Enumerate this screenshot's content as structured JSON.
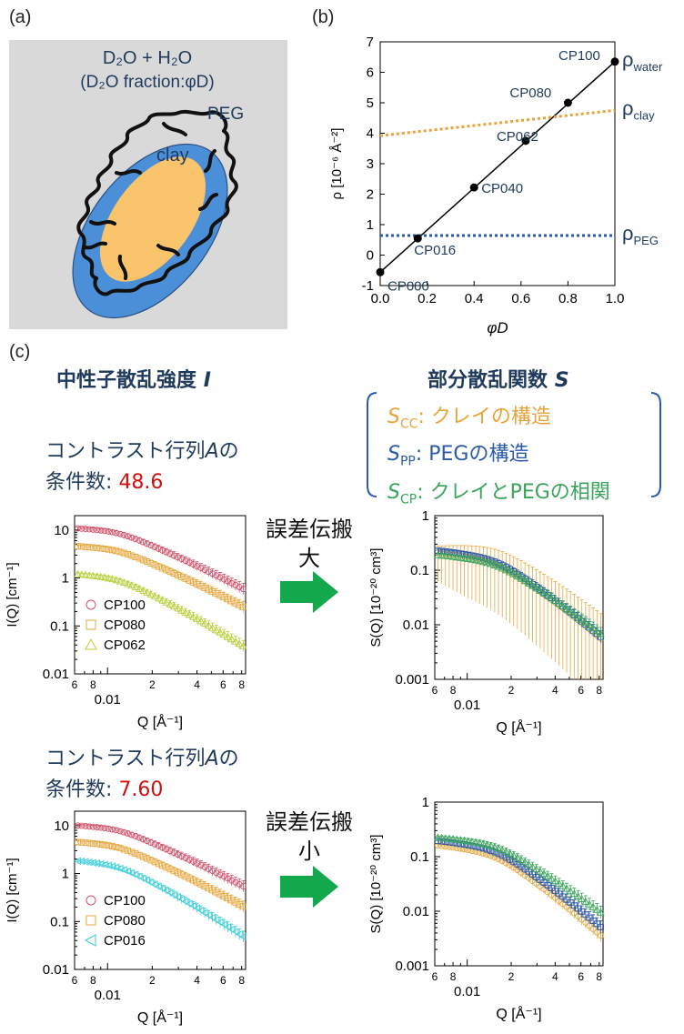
{
  "panel_a": {
    "label": "(a)",
    "solvent": "D₂O + H₂O",
    "fraction": "(D₂O  fraction:φD)",
    "peg": "PEG",
    "clay": "clay",
    "colors": {
      "background": "#d9d9d9",
      "peg": "#4b8fd8",
      "clay": "#f9c46b",
      "chains": "#111111"
    }
  },
  "panel_b": {
    "label": "(b)"
  },
  "panel_c": {
    "label": "(c)",
    "left_heading": "中性子散乱強度",
    "left_heading_symbol": "I",
    "right_heading": "部分散乱関数",
    "right_heading_symbol": "S",
    "legend_box": [
      {
        "sym": "S",
        "sub": "CC",
        "text": ": クレイの構造",
        "color": "#e8a33a"
      },
      {
        "sym": "S",
        "sub": "PP",
        "text": ": PEGの構造",
        "color": "#2a5aa8"
      },
      {
        "sym": "S",
        "sub": "CP",
        "text": ": クレイとPEGの相関",
        "color": "#3aa55a"
      }
    ],
    "top": {
      "cond_line1": "コントラスト行列",
      "cond_A": "A",
      "cond_no": "の",
      "cond_line2": "条件数",
      "cond_colon": ":",
      "cond_value": "48.6",
      "arrow_line1": "誤差伝搬",
      "arrow_line2": "大"
    },
    "bottom": {
      "cond_line1": "コントラスト行列",
      "cond_A": "A",
      "cond_no": "の",
      "cond_line2": "条件数",
      "cond_colon": ":",
      "cond_value": "7.60",
      "arrow_line1": "誤差伝搬",
      "arrow_line2": "小"
    },
    "arrow_color": "#12a84b"
  },
  "chart_data": [
    {
      "id": "b",
      "type": "line",
      "xlabel": "φD",
      "ylabel": "ρ [10⁻⁶ Å⁻²]",
      "xlim": [
        0.0,
        1.0
      ],
      "ylim": [
        -1,
        7
      ],
      "xticks": [
        "0.0",
        "0.2",
        "0.4",
        "0.6",
        "0.8",
        "1.0"
      ],
      "yticks": [
        "-1",
        "0",
        "1",
        "2",
        "3",
        "4",
        "5",
        "6",
        "7"
      ],
      "points": [
        {
          "name": "CP000",
          "x": 0.0,
          "y": -0.56
        },
        {
          "name": "CP016",
          "x": 0.16,
          "y": 0.55
        },
        {
          "name": "CP040",
          "x": 0.4,
          "y": 2.22
        },
        {
          "name": "CP062",
          "x": 0.62,
          "y": 3.75
        },
        {
          "name": "CP080",
          "x": 0.8,
          "y": 5.0
        },
        {
          "name": "CP100",
          "x": 1.0,
          "y": 6.35
        }
      ],
      "lines": [
        {
          "name": "ρwater",
          "sym": "ρ",
          "sub": "water",
          "x": [
            0,
            1
          ],
          "y": [
            -0.56,
            6.35
          ],
          "color": "#000000",
          "style": "solid"
        },
        {
          "name": "ρclay",
          "sym": "ρ",
          "sub": "clay",
          "x": [
            0,
            1
          ],
          "y": [
            3.92,
            4.75
          ],
          "color": "#e8a33a",
          "style": "dotted"
        },
        {
          "name": "ρPEG",
          "sym": "ρ",
          "sub": "PEG",
          "x": [
            0,
            1
          ],
          "y": [
            0.64,
            0.64
          ],
          "color": "#2a5aa8",
          "style": "dotted"
        }
      ]
    },
    {
      "id": "c-top-left",
      "type": "scatter",
      "log": true,
      "xlabel": "Q [Å⁻¹]",
      "ylabel": "I(Q) [cm⁻¹]",
      "xlim": [
        0.006,
        0.085
      ],
      "ylim": [
        0.01,
        20
      ],
      "xticks": [
        {
          "v": 0.006,
          "t": "6"
        },
        {
          "v": 0.008,
          "t": "8"
        },
        {
          "v": 0.02,
          "t": "2"
        },
        {
          "v": 0.04,
          "t": "4"
        },
        {
          "v": 0.06,
          "t": "6"
        },
        {
          "v": 0.08,
          "t": "8"
        }
      ],
      "xmajor": {
        "v": 0.01,
        "t": "0.01"
      },
      "yticks": [
        {
          "v": 10,
          "t": "10"
        },
        {
          "v": 1,
          "t": "1"
        },
        {
          "v": 0.1,
          "t": "0.1"
        },
        {
          "v": 0.01,
          "t": "0.01"
        }
      ],
      "series": [
        {
          "name": "CP100",
          "color": "#d0506a",
          "marker": "circle",
          "A": 13,
          "q0": 0.012,
          "slope": 1.6
        },
        {
          "name": "CP080",
          "color": "#e6a73e",
          "marker": "square",
          "A": 5.5,
          "q0": 0.012,
          "slope": 1.6
        },
        {
          "name": "CP062",
          "color": "#b8cf3a",
          "marker": "triangle-up",
          "A": 1.5,
          "q0": 0.012,
          "slope": 1.9
        }
      ]
    },
    {
      "id": "c-top-right",
      "type": "scatter",
      "log": true,
      "xlabel": "Q [Å⁻¹]",
      "ylabel": "S(Q) [10⁻²⁰ cm³]",
      "xlim": [
        0.006,
        0.085
      ],
      "ylim": [
        0.001,
        1
      ],
      "xticks": [
        {
          "v": 0.006,
          "t": "6"
        },
        {
          "v": 0.008,
          "t": "8"
        },
        {
          "v": 0.02,
          "t": "2"
        },
        {
          "v": 0.04,
          "t": "4"
        },
        {
          "v": 0.06,
          "t": "6"
        },
        {
          "v": 0.08,
          "t": "8"
        }
      ],
      "xmajor": {
        "v": 0.01,
        "t": "0.01"
      },
      "yticks": [
        {
          "v": 1,
          "t": "1"
        },
        {
          "v": 0.1,
          "t": "0.1"
        },
        {
          "v": 0.01,
          "t": "0.01"
        },
        {
          "v": 0.001,
          "t": "0.001"
        }
      ],
      "series": [
        {
          "name": "SCC",
          "color": "#e6a73e",
          "marker": "circle",
          "A": 0.25,
          "q0": 0.016,
          "slope": 2.3,
          "big_errors": true
        },
        {
          "name": "SPP",
          "color": "#2a5aa8",
          "marker": "square",
          "A": 0.27,
          "q0": 0.016,
          "slope": 2.3
        },
        {
          "name": "SCP",
          "color": "#3aa55a",
          "marker": "triangle-up",
          "A": 0.22,
          "q0": 0.016,
          "slope": 2.1
        }
      ]
    },
    {
      "id": "c-bottom-left",
      "type": "scatter",
      "log": true,
      "xlabel": "Q [Å⁻¹]",
      "ylabel": "I(Q) [cm⁻¹]",
      "xlim": [
        0.006,
        0.085
      ],
      "ylim": [
        0.01,
        20
      ],
      "xticks": [
        {
          "v": 0.006,
          "t": "6"
        },
        {
          "v": 0.008,
          "t": "8"
        },
        {
          "v": 0.02,
          "t": "2"
        },
        {
          "v": 0.04,
          "t": "4"
        },
        {
          "v": 0.06,
          "t": "6"
        },
        {
          "v": 0.08,
          "t": "8"
        }
      ],
      "xmajor": {
        "v": 0.01,
        "t": "0.01"
      },
      "yticks": [
        {
          "v": 10,
          "t": "10"
        },
        {
          "v": 1,
          "t": "1"
        },
        {
          "v": 0.1,
          "t": "0.1"
        },
        {
          "v": 0.01,
          "t": "0.01"
        }
      ],
      "series": [
        {
          "name": "CP100",
          "color": "#d0506a",
          "marker": "circle",
          "A": 12,
          "q0": 0.012,
          "slope": 1.6
        },
        {
          "name": "CP080",
          "color": "#e6a73e",
          "marker": "square",
          "A": 5.5,
          "q0": 0.012,
          "slope": 1.7
        },
        {
          "name": "CP016",
          "color": "#3ecfd8",
          "marker": "triangle-left",
          "A": 2.3,
          "q0": 0.012,
          "slope": 2.0
        }
      ]
    },
    {
      "id": "c-bottom-right",
      "type": "scatter",
      "log": true,
      "xlabel": "Q [Å⁻¹]",
      "ylabel": "S(Q) [10⁻²⁰ cm³]",
      "xlim": [
        0.006,
        0.085
      ],
      "ylim": [
        0.001,
        1
      ],
      "xticks": [
        {
          "v": 0.006,
          "t": "6"
        },
        {
          "v": 0.008,
          "t": "8"
        },
        {
          "v": 0.02,
          "t": "2"
        },
        {
          "v": 0.04,
          "t": "4"
        },
        {
          "v": 0.06,
          "t": "6"
        },
        {
          "v": 0.08,
          "t": "8"
        }
      ],
      "xmajor": {
        "v": 0.01,
        "t": "0.01"
      },
      "yticks": [
        {
          "v": 1,
          "t": "1"
        },
        {
          "v": 0.1,
          "t": "0.1"
        },
        {
          "v": 0.01,
          "t": "0.01"
        },
        {
          "v": 0.001,
          "t": "0.001"
        }
      ],
      "series": [
        {
          "name": "SCC",
          "color": "#e6a73e",
          "marker": "circle",
          "A": 0.19,
          "q0": 0.016,
          "slope": 2.4
        },
        {
          "name": "SPP",
          "color": "#2a5aa8",
          "marker": "square",
          "A": 0.23,
          "q0": 0.016,
          "slope": 2.3
        },
        {
          "name": "SCP",
          "color": "#3aa55a",
          "marker": "triangle-up",
          "A": 0.26,
          "q0": 0.016,
          "slope": 2.0
        }
      ]
    }
  ]
}
